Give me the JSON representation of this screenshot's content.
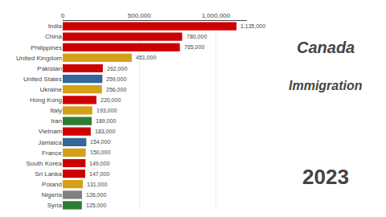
{
  "chart_data": {
    "type": "bar",
    "orientation": "horizontal",
    "categories": [
      "India",
      "China",
      "Philippines",
      "United Kingdom",
      "Pakistan",
      "United States",
      "Ukraine",
      "Hong Kong",
      "Italy",
      "Iran",
      "Vietnam",
      "Jamaica",
      "France",
      "South Korea",
      "Sri Lanka",
      "Poland",
      "Nigeria",
      "Syria"
    ],
    "values": [
      1135000,
      780000,
      765000,
      451000,
      262000,
      259000,
      256000,
      220000,
      193000,
      189000,
      183000,
      154000,
      150000,
      149000,
      147000,
      131000,
      126000,
      125000
    ],
    "value_labels": [
      "1,135,000",
      "780,000",
      "765,000",
      "451,000",
      "262,000",
      "259,000",
      "256,000",
      "220,000",
      "193,000",
      "189,000",
      "183,000",
      "154,000",
      "150,000",
      "149,000",
      "147,000",
      "131,000",
      "126,000",
      "125,000"
    ],
    "colors": [
      "#cc0000",
      "#cc0000",
      "#cc0000",
      "#d4a017",
      "#cc0000",
      "#336699",
      "#d4a017",
      "#cc0000",
      "#d4a017",
      "#2e7d32",
      "#cc0000",
      "#336699",
      "#d4a017",
      "#cc0000",
      "#cc0000",
      "#d4a017",
      "#808080",
      "#2e7d32"
    ],
    "xlim": [
      0,
      1200000
    ],
    "xticks": [
      0,
      {
        "value": 500000,
        "label": "500,000"
      },
      {
        "value": 1000000,
        "label": "1,000,000"
      }
    ],
    "grid": true,
    "data_labels": true,
    "annotations": [
      "Canada",
      "Immigration",
      "2023"
    ]
  }
}
